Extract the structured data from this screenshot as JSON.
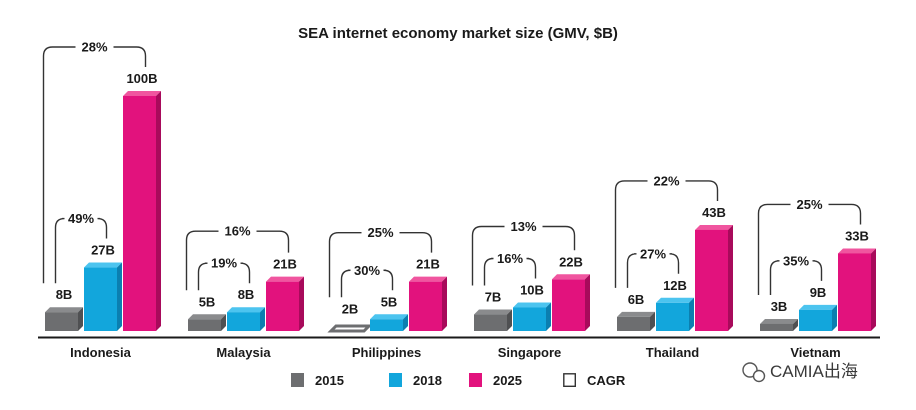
{
  "chart_data": {
    "type": "bar",
    "title": "SEA internet economy market size (GMV, $B)",
    "categories": [
      "Indonesia",
      "Malaysia",
      "Philippines",
      "Singapore",
      "Thailand",
      "Vietnam"
    ],
    "series": [
      {
        "name": "2015",
        "values": [
          8,
          5,
          2,
          7,
          6,
          3
        ],
        "labels": [
          "8B",
          "5B",
          "2B",
          "7B",
          "6B",
          "3B"
        ],
        "color": "#6d6e70"
      },
      {
        "name": "2018",
        "values": [
          27,
          8,
          5,
          10,
          12,
          9
        ],
        "labels": [
          "27B",
          "8B",
          "5B",
          "10B",
          "12B",
          "9B"
        ],
        "color": "#12a6dc"
      },
      {
        "name": "2025",
        "values": [
          100,
          21,
          21,
          22,
          43,
          33
        ],
        "labels": [
          "100B",
          "21B",
          "21B",
          "22B",
          "43B",
          "33B"
        ],
        "color": "#e2127d"
      }
    ],
    "cagr_2015_2018": [
      "49%",
      "19%",
      "30%",
      "16%",
      "27%",
      "35%"
    ],
    "cagr_2015_2025": [
      "28%",
      "16%",
      "25%",
      "13%",
      "22%",
      "25%"
    ],
    "legend": [
      "2015",
      "2018",
      "2025",
      "CAGR"
    ],
    "ylim": [
      0,
      100
    ],
    "xlabel": "",
    "ylabel": ""
  },
  "watermark": "CAMIA出海",
  "colors": {
    "gray_front": "#6d6e70",
    "gray_top": "#8a8b8d",
    "gray_side": "#4f5052",
    "blue_front": "#12a6dc",
    "blue_top": "#4cc4ef",
    "blue_side": "#0b7fb0",
    "pink_front": "#e2127d",
    "pink_top": "#f0559f",
    "pink_side": "#a80a5b",
    "bracket": "#333333",
    "axis": "#1a1a1a"
  }
}
